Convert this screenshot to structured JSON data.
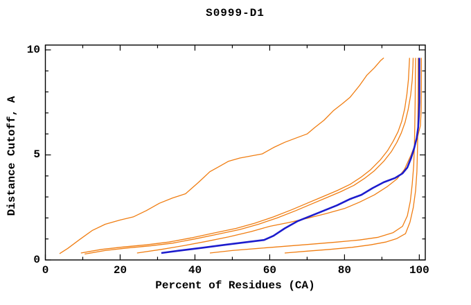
{
  "window": {
    "background": "#ffffff"
  },
  "chart_data": {
    "type": "line",
    "title": "S0999-D1",
    "xlabel": "Percent of Residues (CA)",
    "ylabel": "Distance Cutoff, A",
    "xlim": [
      0,
      101.6
    ],
    "ylim": [
      0,
      10.23
    ],
    "x_ticks_major": [
      0,
      20,
      40,
      60,
      80,
      100
    ],
    "x_ticks_minor": [
      10,
      30,
      50,
      70,
      90
    ],
    "x_tick_labels": [
      "0",
      "20",
      "40",
      "60",
      "80",
      "100"
    ],
    "y_ticks_major": [
      0,
      5,
      10
    ],
    "y_ticks_minor": [
      1,
      2,
      3,
      4,
      6,
      7,
      8,
      9
    ],
    "y_tick_labels": [
      "0",
      "5",
      "10"
    ],
    "grid": false,
    "legend": "none",
    "colors": {
      "model_line": "#f07d11",
      "highlight_line": "#1c1ccd",
      "axis": "#000000",
      "text": "#000000",
      "background": "#ffffff"
    },
    "series": [
      {
        "name": "model-curve-1",
        "role": "model",
        "width": 1.3,
        "points": [
          [
            3.8,
            0.3
          ],
          [
            6,
            0.55
          ],
          [
            9,
            0.95
          ],
          [
            12.5,
            1.4
          ],
          [
            16,
            1.7
          ],
          [
            20,
            1.9
          ],
          [
            23.5,
            2.05
          ],
          [
            27,
            2.35
          ],
          [
            30.5,
            2.7
          ],
          [
            34,
            2.95
          ],
          [
            37.5,
            3.15
          ],
          [
            41,
            3.7
          ],
          [
            44,
            4.2
          ],
          [
            46.5,
            4.45
          ],
          [
            49,
            4.7
          ],
          [
            52,
            4.85
          ],
          [
            55,
            4.95
          ],
          [
            58,
            5.05
          ],
          [
            61,
            5.35
          ],
          [
            64,
            5.6
          ],
          [
            67,
            5.8
          ],
          [
            70,
            6.0
          ],
          [
            72,
            6.3
          ],
          [
            74.5,
            6.65
          ],
          [
            77,
            7.1
          ],
          [
            79.5,
            7.45
          ],
          [
            81.5,
            7.75
          ],
          [
            84,
            8.3
          ],
          [
            86,
            8.8
          ],
          [
            88,
            9.15
          ],
          [
            89.7,
            9.5
          ],
          [
            90.5,
            9.62
          ]
        ]
      },
      {
        "name": "model-curve-2",
        "role": "model",
        "width": 1.3,
        "points": [
          [
            9.5,
            0.33
          ],
          [
            15,
            0.5
          ],
          [
            21,
            0.62
          ],
          [
            27,
            0.72
          ],
          [
            33,
            0.85
          ],
          [
            39,
            1.05
          ],
          [
            45,
            1.28
          ],
          [
            51,
            1.5
          ],
          [
            56,
            1.75
          ],
          [
            61,
            2.05
          ],
          [
            66,
            2.4
          ],
          [
            70,
            2.7
          ],
          [
            74,
            3.0
          ],
          [
            78,
            3.3
          ],
          [
            81.5,
            3.6
          ],
          [
            84.5,
            3.95
          ],
          [
            87,
            4.3
          ],
          [
            89.5,
            4.75
          ],
          [
            91.5,
            5.2
          ],
          [
            93,
            5.65
          ],
          [
            94.3,
            6.1
          ],
          [
            95.3,
            6.6
          ],
          [
            96.1,
            7.2
          ],
          [
            96.7,
            7.9
          ],
          [
            97.1,
            8.6
          ],
          [
            97.3,
            9.3
          ],
          [
            97.4,
            9.62
          ]
        ]
      },
      {
        "name": "model-curve-3",
        "role": "model",
        "width": 1.3,
        "points": [
          [
            10.5,
            0.28
          ],
          [
            16,
            0.45
          ],
          [
            22,
            0.57
          ],
          [
            28,
            0.67
          ],
          [
            34,
            0.8
          ],
          [
            40,
            1.0
          ],
          [
            46,
            1.22
          ],
          [
            52,
            1.45
          ],
          [
            57,
            1.7
          ],
          [
            62,
            2.0
          ],
          [
            67,
            2.35
          ],
          [
            71,
            2.65
          ],
          [
            75,
            2.95
          ],
          [
            79,
            3.25
          ],
          [
            82.5,
            3.55
          ],
          [
            85.5,
            3.9
          ],
          [
            88,
            4.25
          ],
          [
            90.5,
            4.7
          ],
          [
            92.5,
            5.15
          ],
          [
            94,
            5.6
          ],
          [
            95.2,
            6.05
          ],
          [
            96.2,
            6.55
          ],
          [
            97,
            7.15
          ],
          [
            97.7,
            7.85
          ],
          [
            98.1,
            8.55
          ],
          [
            98.3,
            9.25
          ],
          [
            98.35,
            9.62
          ]
        ]
      },
      {
        "name": "model-curve-4",
        "role": "model",
        "width": 1.3,
        "points": [
          [
            24.5,
            0.33
          ],
          [
            31,
            0.5
          ],
          [
            37,
            0.68
          ],
          [
            43,
            0.88
          ],
          [
            49,
            1.1
          ],
          [
            55,
            1.35
          ],
          [
            60,
            1.6
          ],
          [
            65,
            1.78
          ],
          [
            70,
            1.98
          ],
          [
            75,
            2.2
          ],
          [
            80,
            2.45
          ],
          [
            84,
            2.75
          ],
          [
            88,
            3.1
          ],
          [
            91.5,
            3.5
          ],
          [
            94,
            3.85
          ],
          [
            96,
            4.3
          ],
          [
            97.8,
            5.0
          ],
          [
            99.3,
            5.7
          ],
          [
            100.3,
            6.4
          ],
          [
            100.5,
            7.2
          ],
          [
            100.55,
            8.4
          ],
          [
            100.55,
            9.62
          ]
        ]
      },
      {
        "name": "model-curve-5",
        "role": "model",
        "width": 1.3,
        "points": [
          [
            44,
            0.33
          ],
          [
            50,
            0.45
          ],
          [
            57,
            0.55
          ],
          [
            64,
            0.65
          ],
          [
            71,
            0.75
          ],
          [
            78,
            0.85
          ],
          [
            84,
            0.95
          ],
          [
            89,
            1.08
          ],
          [
            93,
            1.3
          ],
          [
            95.5,
            1.6
          ],
          [
            96.8,
            2.1
          ],
          [
            97.6,
            2.8
          ],
          [
            98.1,
            3.6
          ],
          [
            98.5,
            4.5
          ],
          [
            98.7,
            5.5
          ],
          [
            98.8,
            6.5
          ],
          [
            98.9,
            7.6
          ],
          [
            98.95,
            8.8
          ],
          [
            99,
            9.62
          ]
        ]
      },
      {
        "name": "model-curve-6",
        "role": "model",
        "width": 1.3,
        "points": [
          [
            64,
            0.33
          ],
          [
            70,
            0.42
          ],
          [
            76,
            0.5
          ],
          [
            82,
            0.6
          ],
          [
            87,
            0.72
          ],
          [
            91,
            0.85
          ],
          [
            94,
            1.02
          ],
          [
            96.3,
            1.25
          ],
          [
            97.5,
            1.8
          ],
          [
            98.4,
            2.5
          ],
          [
            99,
            3.3
          ],
          [
            99.35,
            4.2
          ],
          [
            99.5,
            5.2
          ],
          [
            99.6,
            6.2
          ],
          [
            99.65,
            7.3
          ],
          [
            99.7,
            8.5
          ],
          [
            99.7,
            9.62
          ]
        ]
      },
      {
        "name": "highlighted-curve",
        "role": "highlight",
        "width": 2.6,
        "points": [
          [
            31,
            0.33
          ],
          [
            36,
            0.45
          ],
          [
            42,
            0.58
          ],
          [
            48,
            0.72
          ],
          [
            54,
            0.85
          ],
          [
            58.5,
            0.95
          ],
          [
            61,
            1.15
          ],
          [
            64,
            1.5
          ],
          [
            67.5,
            1.85
          ],
          [
            71,
            2.1
          ],
          [
            74.5,
            2.35
          ],
          [
            78,
            2.6
          ],
          [
            81.5,
            2.9
          ],
          [
            84.5,
            3.1
          ],
          [
            87.5,
            3.42
          ],
          [
            90.5,
            3.7
          ],
          [
            93.5,
            3.9
          ],
          [
            95.5,
            4.12
          ],
          [
            96.8,
            4.4
          ],
          [
            97.8,
            4.85
          ],
          [
            98.6,
            5.3
          ],
          [
            99.3,
            5.8
          ],
          [
            99.7,
            6.3
          ],
          [
            99.9,
            6.9
          ],
          [
            100,
            7.5
          ],
          [
            100,
            9.62
          ]
        ]
      }
    ]
  }
}
